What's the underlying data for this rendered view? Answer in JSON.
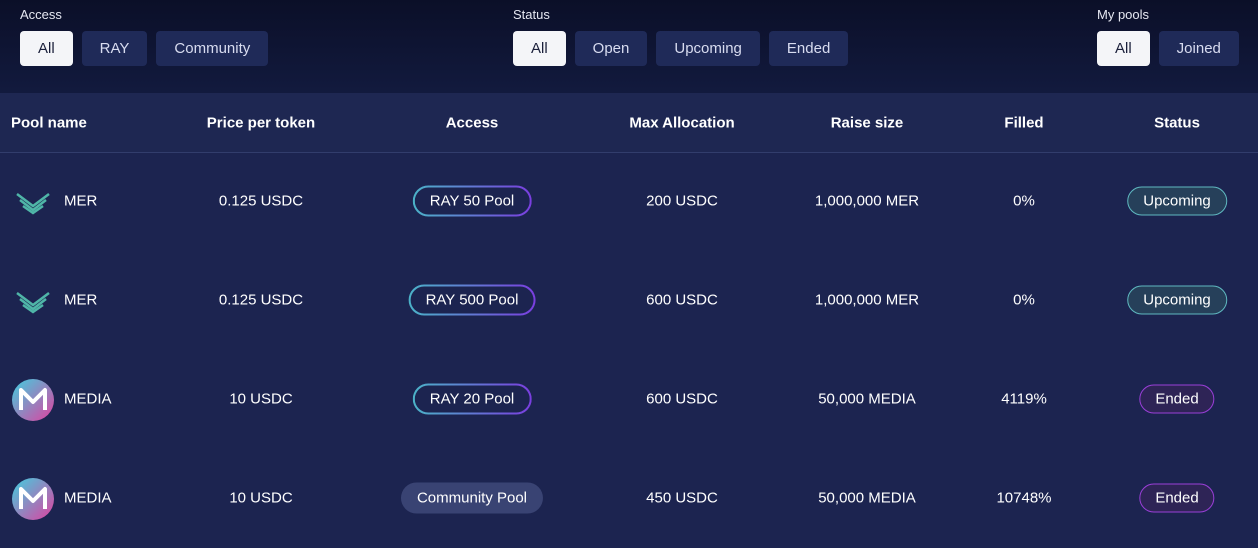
{
  "filters": [
    {
      "label": "Access",
      "options": [
        "All",
        "RAY",
        "Community"
      ]
    },
    {
      "label": "Status",
      "options": [
        "All",
        "Open",
        "Upcoming",
        "Ended"
      ]
    },
    {
      "label": "My pools",
      "options": [
        "All",
        "Joined"
      ]
    }
  ],
  "table": {
    "columns": [
      "Pool name",
      "Price per token",
      "Access",
      "Max Allocation",
      "Raise size",
      "Filled",
      "Status"
    ],
    "rows": [
      [
        "MER",
        "0.125 USDC",
        "RAY 50 Pool",
        "200 USDC",
        "1,000,000 MER",
        "0%",
        "Upcoming"
      ],
      [
        "MER",
        "0.125 USDC",
        "RAY 500 Pool",
        "600 USDC",
        "1,000,000 MER",
        "0%",
        "Upcoming"
      ],
      [
        "MEDIA",
        "10 USDC",
        "RAY 20 Pool",
        "600 USDC",
        "50,000 MEDIA",
        "4119%",
        "Ended"
      ],
      [
        "MEDIA",
        "10 USDC",
        "Community Pool",
        "450 USDC",
        "50,000 MEDIA",
        "10748%",
        "Ended"
      ]
    ]
  }
}
